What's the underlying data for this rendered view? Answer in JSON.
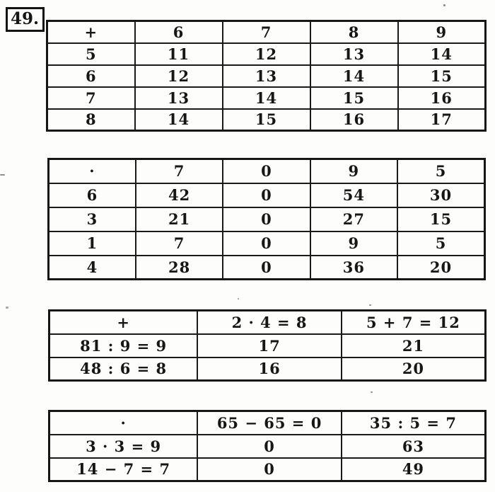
{
  "page": {
    "exercise_number": "49.",
    "ink_color": "#161616",
    "paper_color": "#fdfdfb"
  },
  "tables": [
    {
      "name": "addition-table-simple",
      "operation": "+",
      "header": [
        "+",
        "6",
        "7",
        "8",
        "9"
      ],
      "rows": [
        [
          "5",
          "11",
          "12",
          "13",
          "14"
        ],
        [
          "6",
          "12",
          "13",
          "14",
          "15"
        ],
        [
          "7",
          "13",
          "14",
          "15",
          "16"
        ],
        [
          "8",
          "14",
          "15",
          "16",
          "17"
        ]
      ]
    },
    {
      "name": "multiplication-table-simple",
      "operation": "·",
      "header": [
        "·",
        "7",
        "0",
        "9",
        "5"
      ],
      "rows": [
        [
          "6",
          "42",
          "0",
          "54",
          "30"
        ],
        [
          "3",
          "21",
          "0",
          "27",
          "15"
        ],
        [
          "1",
          "7",
          "0",
          "9",
          "5"
        ],
        [
          "4",
          "28",
          "0",
          "36",
          "20"
        ]
      ]
    },
    {
      "name": "addition-table-expressions",
      "operation": "+",
      "header": [
        "+",
        "2 · 4 = 8",
        "5 + 7 = 12"
      ],
      "rows": [
        [
          "81 : 9 = 9",
          "17",
          "21"
        ],
        [
          "48 : 6 = 8",
          "16",
          "20"
        ]
      ]
    },
    {
      "name": "multiplication-table-expressions",
      "operation": "·",
      "header": [
        "·",
        "65 − 65 = 0",
        "35 : 5 = 7"
      ],
      "rows": [
        [
          "3 · 3 = 9",
          "0",
          "63"
        ],
        [
          "14 − 7 = 7",
          "0",
          "49"
        ]
      ]
    }
  ]
}
